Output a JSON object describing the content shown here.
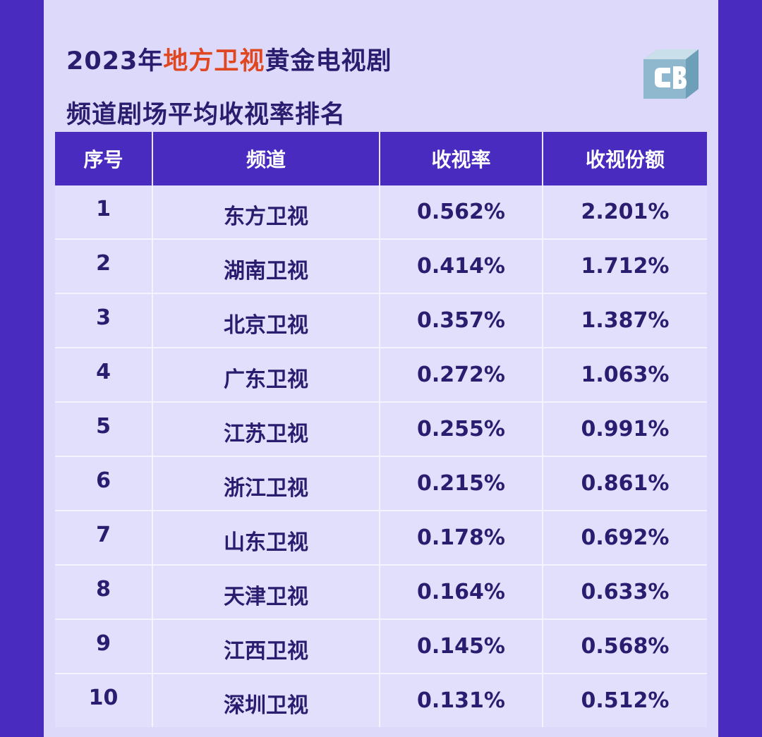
{
  "title": {
    "line1_prefix": "2023年",
    "line1_highlight": "地方卫视",
    "line1_suffix": "黄金电视剧",
    "line2": "频道剧场平均收视率排名"
  },
  "colors": {
    "accent": "#4a2bbf",
    "highlight": "#e0461f",
    "text": "#2a1c6e",
    "panel": "#dcd9fb"
  },
  "logo": {
    "icon": "cb-logo"
  },
  "chart_data": {
    "type": "table",
    "columns": [
      "序号",
      "频道",
      "收视率",
      "收视份额"
    ],
    "rows": [
      [
        "1",
        "东方卫视",
        "0.562%",
        "2.201%"
      ],
      [
        "2",
        "湖南卫视",
        "0.414%",
        "1.712%"
      ],
      [
        "3",
        "北京卫视",
        "0.357%",
        "1.387%"
      ],
      [
        "4",
        "广东卫视",
        "0.272%",
        "1.063%"
      ],
      [
        "5",
        "江苏卫视",
        "0.255%",
        "0.991%"
      ],
      [
        "6",
        "浙江卫视",
        "0.215%",
        "0.861%"
      ],
      [
        "7",
        "山东卫视",
        "0.178%",
        "0.692%"
      ],
      [
        "8",
        "天津卫视",
        "0.164%",
        "0.633%"
      ],
      [
        "9",
        "江西卫视",
        "0.145%",
        "0.568%"
      ],
      [
        "10",
        "深圳卫视",
        "0.131%",
        "0.512%"
      ]
    ]
  }
}
